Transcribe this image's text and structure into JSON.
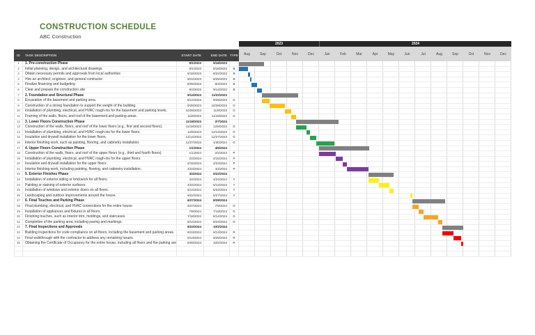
{
  "header": {
    "title": "CONSTRUCTION SCHEDULE",
    "subtitle": "ABC Construction"
  },
  "colors": {
    "title_green": "#538135",
    "header_dark": "#404040",
    "year_band_black": "#262626",
    "month_band_gray": "#d9d9d9",
    "grid_line": "#dcdcdc",
    "bar_gray": "#808080",
    "bar_blue": "#2173b5",
    "bar_gold": "#ffc000",
    "bar_green": "#21a54f",
    "bar_purple": "#7a3ba2",
    "bar_yellow": "#fdf200",
    "bar_orange": "#f8a51b",
    "bar_red": "#fb0000"
  },
  "chart_data": {
    "type": "table",
    "subtype": "gantt",
    "title": "CONSTRUCTION SCHEDULE",
    "subtitle": "ABC Construction",
    "columns": [
      "ID",
      "TASK DESCRIPTION",
      "START DATE",
      "END DATE",
      "TYPE"
    ],
    "timeline": {
      "range_start": "8/1/2023",
      "range_end": "12/31/2024",
      "years": [
        {
          "label": "2023",
          "months": [
            "Aug",
            "Sep",
            "Oct",
            "Nov",
            "Dec"
          ]
        },
        {
          "label": "2024",
          "months": [
            "Jan",
            "Feb",
            "Mar",
            "Apr",
            "May",
            "Jun",
            "Jul",
            "Aug",
            "Sep",
            "Oct",
            "Nov",
            "Dec"
          ]
        }
      ]
    },
    "trailing_empty_rows": 2,
    "tasks": [
      {
        "id": "1",
        "name": "1. Pre-construction Phase",
        "start": "8/1/2023",
        "end": "9/18/2023",
        "type": "",
        "bar": "gray",
        "phase": true
      },
      {
        "id": "2",
        "name": "Initial planning, design, and architectural drawings",
        "start": "8/1/2023",
        "end": "8/18/2023",
        "type": "B",
        "bar": "blue",
        "phase": false
      },
      {
        "id": "3",
        "name": "Obtain necessary permits and approvals from local authorities",
        "start": "8/18/2023",
        "end": "8/22/2023",
        "type": "B",
        "bar": "blue",
        "phase": false
      },
      {
        "id": "4",
        "name": "Hire an architect, engineer, and general contractor",
        "start": "8/22/2023",
        "end": "8/25/2023",
        "type": "B",
        "bar": "blue",
        "phase": false
      },
      {
        "id": "5",
        "name": "Finalize financing and budgeting",
        "start": "8/25/2023",
        "end": "9/4/2023",
        "type": "B",
        "bar": "blue",
        "phase": false
      },
      {
        "id": "6",
        "name": "Clear and prepare the construction site",
        "start": "9/4/2023",
        "end": "9/14/2023",
        "type": "B",
        "bar": "blue",
        "phase": false
      },
      {
        "id": "7",
        "name": "2. Foundation and Structural Phase",
        "start": "9/14/2023",
        "end": "11/22/2023",
        "type": "",
        "bar": "gray",
        "phase": true
      },
      {
        "id": "8",
        "name": "Excavation of the basement and parking area.",
        "start": "9/14/2023",
        "end": "9/29/2023",
        "type": "G",
        "bar": "gold",
        "phase": false
      },
      {
        "id": "9",
        "name": "Construction of a strong foundation to support the weight of the building.",
        "start": "9/28/2023",
        "end": "10/28/2023",
        "type": "G",
        "bar": "gold",
        "phase": false
      },
      {
        "id": "10",
        "name": "Installation of plumbing, electrical, and HVAC rough-ins for the basement and parking levels.",
        "start": "10/28/2023",
        "end": "11/8/2023",
        "type": "G",
        "bar": "gold",
        "phase": false
      },
      {
        "id": "11",
        "name": "Framing of the walls, floors, and roof of the basement and parking areas.",
        "start": "11/8/2023",
        "end": "11/18/2023",
        "type": "G",
        "bar": "gold",
        "phase": false
      },
      {
        "id": "12",
        "name": "3. Lower Floors Construction Phase",
        "start": "11/18/2023",
        "end": "2/7/2024",
        "type": "",
        "bar": "gray",
        "phase": true
      },
      {
        "id": "13",
        "name": "Construction of the walls, floors, and roof of the lower floors (e.g., first and second floors).",
        "start": "11/18/2023",
        "end": "12/8/2023",
        "type": "G",
        "bar": "green",
        "phase": false
      },
      {
        "id": "14",
        "name": "Installation of plumbing, electrical, and HVAC rough-ins for the lower floors.",
        "start": "12/8/2023",
        "end": "12/14/2023",
        "type": "G",
        "bar": "green",
        "phase": false
      },
      {
        "id": "15",
        "name": "Insulation and drywall installation for the lower floors.",
        "start": "12/14/2023",
        "end": "12/27/2023",
        "type": "G",
        "bar": "green",
        "phase": false
      },
      {
        "id": "16",
        "name": "Interior finishing work, such as painting, flooring, and cabinetry installation.",
        "start": "12/27/2023",
        "end": "1/30/2024",
        "type": "G",
        "bar": "green",
        "phase": false
      },
      {
        "id": "17",
        "name": "4. Upper Floors Construction Phase",
        "start": "1/1/2024",
        "end": "4/5/2024",
        "type": "",
        "bar": "gray",
        "phase": true
      },
      {
        "id": "18",
        "name": "Construction of the walls, floors, and roof of the upper floors (e.g., third and fourth floors).",
        "start": "1/1/2024",
        "end": "2/2/2024",
        "type": "P",
        "bar": "purple",
        "phase": false
      },
      {
        "id": "19",
        "name": "Installation of plumbing, electrical, and HVAC rough-ins for the upper floors.",
        "start": "2/2/2024",
        "end": "2/15/2024",
        "type": "P",
        "bar": "purple",
        "phase": false
      },
      {
        "id": "20",
        "name": "Insulation and drywall installation for the upper floors.",
        "start": "2/15/2024",
        "end": "2/23/2024",
        "type": "P",
        "bar": "purple",
        "phase": false
      },
      {
        "id": "21",
        "name": "Interior finishing work, including painting, flooring, and cabinetry installation.",
        "start": "2/23/2024",
        "end": "4/4/2024",
        "type": "P",
        "bar": "purple",
        "phase": false
      },
      {
        "id": "22",
        "name": "5. Exterior Finishes Phase",
        "start": "4/4/2024",
        "end": "5/22/2024",
        "type": "",
        "bar": "gray",
        "phase": true
      },
      {
        "id": "23",
        "name": "Installation of exterior siding or brickwork for all floors.",
        "start": "4/4/2024",
        "end": "4/24/2024",
        "type": "Y",
        "bar": "yellow",
        "phase": false
      },
      {
        "id": "24",
        "name": "Painting or staining of exterior surfaces.",
        "start": "4/24/2024",
        "end": "5/14/2024",
        "type": "Y",
        "bar": "yellow",
        "phase": false
      },
      {
        "id": "25",
        "name": "Installation of windows and exterior doors on all floors.",
        "start": "5/14/2024",
        "end": "5/22/2024",
        "type": "Y",
        "bar": "yellow",
        "phase": false
      },
      {
        "id": "26",
        "name": "Landscaping and outdoor improvements around the house.",
        "start": "6/22/2024",
        "end": "6/27/2024",
        "type": "Y",
        "bar": "yellow",
        "phase": false
      },
      {
        "id": "27",
        "name": "6. Final Touches and Parking Phase",
        "start": "6/27/2024",
        "end": "8/28/2024",
        "type": "",
        "bar": "gray",
        "phase": true
      },
      {
        "id": "28",
        "name": "Final plumbing, electrical, and HVAC connections for the entire house.",
        "start": "6/27/2024",
        "end": "7/9/2024",
        "type": "G",
        "bar": "orange",
        "phase": false
      },
      {
        "id": "29",
        "name": "Installation of appliances and fixtures in all floors.",
        "start": "7/9/2024",
        "end": "7/18/2024",
        "type": "G",
        "bar": "orange",
        "phase": false
      },
      {
        "id": "30",
        "name": "Finishing touches, such as interior trim, moldings, and staircases.",
        "start": "7/18/2024",
        "end": "8/14/2024",
        "type": "G",
        "bar": "orange",
        "phase": false
      },
      {
        "id": "31",
        "name": "Completion of the parking area, including paving and markings.",
        "start": "8/14/2024",
        "end": "8/23/2024",
        "type": "G",
        "bar": "orange",
        "phase": false
      },
      {
        "id": "32",
        "name": "7. Final Inspections and Approvals",
        "start": "8/23/2024",
        "end": "10/2/2024",
        "type": "",
        "bar": "gray",
        "phase": true
      },
      {
        "id": "33",
        "name": "Building inspections for code compliance on all floors, including the basement and parking areas.",
        "start": "8/23/2024",
        "end": "9/13/2024",
        "type": "R",
        "bar": "red",
        "phase": false
      },
      {
        "id": "34",
        "name": "Final walkthrough with the contractor to address any remaining issues.",
        "start": "9/13/2024",
        "end": "9/28/2024",
        "type": "R",
        "bar": "red",
        "phase": false
      },
      {
        "id": "35",
        "name": "Obtaining the Certificate of Occupancy for the entire house, including all floors and the parking area.",
        "start": "9/28/2024",
        "end": "10/2/2024",
        "type": "R",
        "bar": "red",
        "phase": false
      }
    ]
  }
}
